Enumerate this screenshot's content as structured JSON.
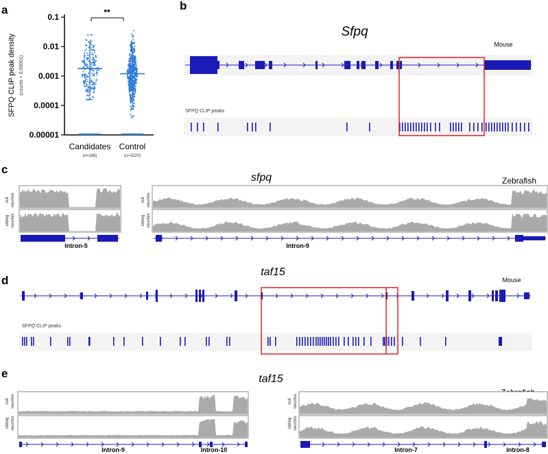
{
  "panels": {
    "a": "a",
    "b": "b",
    "c": "c",
    "d": "d",
    "e": "e"
  },
  "panel_a": {
    "ylabel": "SFPQ CLIP peak density",
    "ylabel_sub": "(counts + 0.00001)",
    "significance": "**",
    "groups": [
      {
        "name": "Candidates",
        "n": "(n=166)"
      },
      {
        "name": "Control",
        "n": "(n=3220)"
      }
    ]
  },
  "chart_data": {
    "type": "scatter",
    "yscale": "log",
    "ylim": [
      1e-05,
      0.1
    ],
    "ytick_labels": [
      "0.1",
      "0.01",
      "0.001",
      "0.0001",
      "0.00001"
    ],
    "ytick_values": [
      0.1,
      0.01,
      0.001,
      0.0001,
      1e-05
    ],
    "categories": [
      "Candidates",
      "Control"
    ],
    "medians": [
      0.0018,
      0.0012
    ],
    "color": "#2b7bd6"
  },
  "panel_b": {
    "gene": "Sfpq",
    "species": "Mouse",
    "track_label": "SFPQ CLIP peaks"
  },
  "panel_c": {
    "gene": "sfpq",
    "species": "Zebrafish",
    "track_null_1": "null",
    "track_null_2": "neurites",
    "track_sib_1": "sibling",
    "track_sib_2": "neurites",
    "intron_left": "Intron-5",
    "intron_right": "Intron-9"
  },
  "panel_d": {
    "gene": "taf15",
    "species": "Mouse",
    "track_label": "SFPQ CLIP peaks"
  },
  "panel_e": {
    "gene": "taf15",
    "species": "Zebrafish",
    "track_null_1": "null",
    "track_null_2": "neurites",
    "track_sib_1": "sibling",
    "track_sib_2": "neurites",
    "intron_l1": "Intron-9",
    "intron_l2": "Intron-10",
    "intron_r1": "Intron-7",
    "intron_r2": "Intron-8"
  },
  "colors": {
    "gene_blue": "#1a1ab8",
    "highlight_red": "#e02020",
    "coverage_gray": "#aaaaaa",
    "point_blue": "#2b7bd6"
  }
}
